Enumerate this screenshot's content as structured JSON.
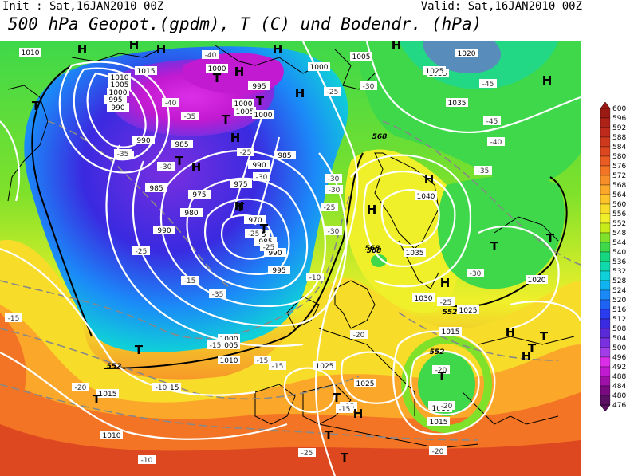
{
  "header": {
    "init": "Init : Sat,16JAN2010 00Z",
    "valid": "Valid: Sat,16JAN2010 00Z",
    "title": "500 hPa Geopot.(gpdm), T (C) und Bodendr. (hPa)"
  },
  "colorbar": {
    "levels": [
      476,
      480,
      484,
      488,
      492,
      496,
      500,
      504,
      508,
      512,
      516,
      520,
      524,
      528,
      532,
      536,
      540,
      544,
      548,
      552,
      556,
      560,
      564,
      568,
      572,
      576,
      580,
      584,
      588,
      592,
      596,
      600
    ],
    "colors": [
      "#5a0f62",
      "#7a0a80",
      "#9e10a8",
      "#c21ad0",
      "#dc2ee8",
      "#a33de8",
      "#7a2fe0",
      "#5a2ad8",
      "#3a2ae0",
      "#2a3bf0",
      "#1f63f5",
      "#1b8af8",
      "#10b2f0",
      "#0fd0d8",
      "#10d9ac",
      "#16d680",
      "#3ed84a",
      "#7fe12a",
      "#c8ec1a",
      "#f0f02a",
      "#f7dc2a",
      "#fcc42a",
      "#fba82a",
      "#f88e28",
      "#f27424",
      "#ea5c22",
      "#de4820",
      "#cf3a1e",
      "#c02a1c",
      "#ae2218",
      "#9c1a14"
    ]
  },
  "map": {
    "pressure_labels": [
      "1010",
      "1015",
      "1010",
      "1005",
      "1000",
      "995",
      "990",
      "990",
      "985",
      "985",
      "980",
      "975",
      "975",
      "970",
      "965",
      "990",
      "985",
      "990",
      "995",
      "1000",
      "1005",
      "1010",
      "1000",
      "1005",
      "1000",
      "1005",
      "1000",
      "995",
      "1000",
      "985",
      "990",
      "1040",
      "1035",
      "1035",
      "1030",
      "1025",
      "1020",
      "1035",
      "1025",
      "1015",
      "1015",
      "1010",
      "1015",
      "1025",
      "1025",
      "1015",
      "1015",
      "1010",
      "1020"
    ],
    "temp_labels": [
      "-40",
      "-40",
      "-45",
      "-30",
      "-25",
      "-35",
      "-30",
      "-35",
      "-25",
      "-35",
      "-25",
      "-30",
      "-25",
      "-30",
      "-35",
      "-30",
      "-15",
      "-10",
      "-20",
      "-25",
      "-20",
      "-15",
      "-15",
      "-10",
      "-15",
      "-20",
      "-15",
      "-20",
      "-25",
      "-10",
      "-45",
      "-40",
      "-30",
      "-15",
      "-15",
      "-25",
      "-20",
      "-25",
      "-30",
      "-35"
    ],
    "height_labels": [
      "568",
      "568",
      "552",
      "552",
      "568",
      "552"
    ],
    "high_markers": [
      "H",
      "H",
      "H",
      "H",
      "H",
      "H",
      "H",
      "H",
      "H",
      "H",
      "H",
      "H",
      "H",
      "H",
      "H",
      "H",
      "H"
    ],
    "low_markers": [
      "T",
      "T",
      "T",
      "T",
      "T",
      "T",
      "T",
      "T",
      "T",
      "T",
      "T",
      "T",
      "T",
      "T",
      "T",
      "T",
      "T"
    ]
  }
}
